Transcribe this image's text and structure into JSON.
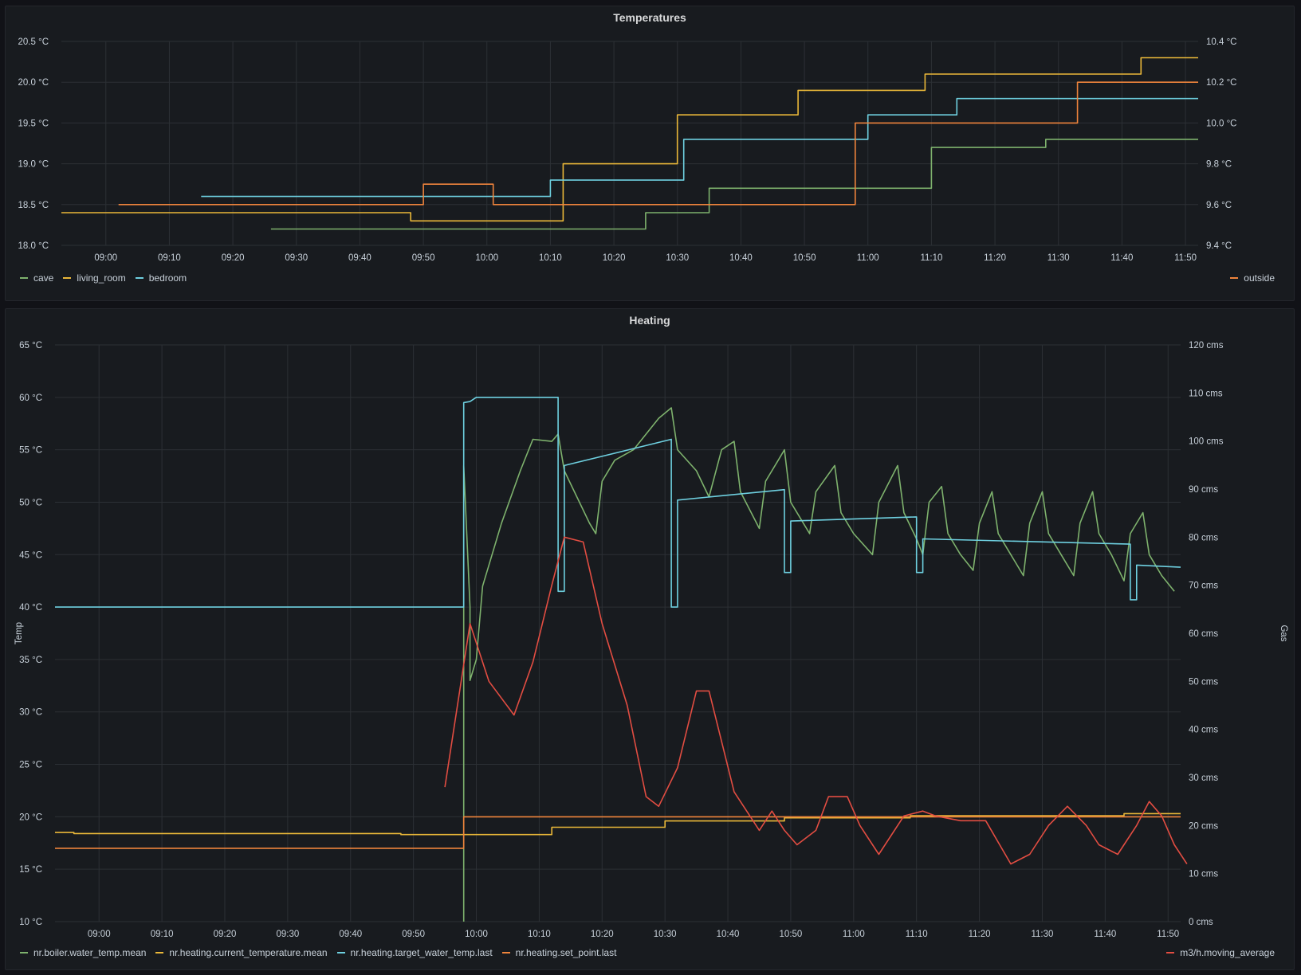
{
  "colors": {
    "green": "#73bf69",
    "yellow": "#fade2a",
    "cyan": "#8ab8ff",
    "orange": "#ff9830",
    "red": "#f2495c",
    "cyan2": "#73d3e6",
    "orange2": "#f09a3e",
    "red2": "#e0503c",
    "yellow2": "#e8b93a"
  },
  "chart_data": [
    {
      "type": "line",
      "title": "Temperatures",
      "x_ticks": [
        "09:00",
        "09:10",
        "09:20",
        "09:30",
        "09:40",
        "09:50",
        "10:00",
        "10:10",
        "10:20",
        "10:30",
        "10:40",
        "10:50",
        "11:00",
        "11:10",
        "11:20",
        "11:30",
        "11:40",
        "11:50"
      ],
      "x_range": [
        "08:53",
        "11:52"
      ],
      "y_left": {
        "ylim": [
          18.0,
          20.5
        ],
        "ticks": [
          "18.0 °C",
          "18.5 °C",
          "19.0 °C",
          "19.5 °C",
          "20.0 °C",
          "20.5 °C"
        ]
      },
      "y_right": {
        "ylim": [
          9.4,
          10.4
        ],
        "ticks": [
          "9.4 °C",
          "9.6 °C",
          "9.8 °C",
          "10.0 °C",
          "10.2 °C",
          "10.4 °C"
        ]
      },
      "grid": true,
      "series": [
        {
          "name": "cave",
          "color": "#7eb26d",
          "axis": "left",
          "step": true,
          "points": [
            [
              "09:26",
              18.2
            ],
            [
              "10:25",
              18.2
            ],
            [
              "10:25",
              18.4
            ],
            [
              "10:35",
              18.4
            ],
            [
              "10:35",
              18.7
            ],
            [
              "11:10",
              18.7
            ],
            [
              "11:10",
              19.2
            ],
            [
              "11:28",
              19.2
            ],
            [
              "11:28",
              19.3
            ],
            [
              "11:52",
              19.3
            ]
          ]
        },
        {
          "name": "living_room",
          "color": "#eab839",
          "axis": "left",
          "step": true,
          "points": [
            [
              "08:53",
              18.4
            ],
            [
              "09:48",
              18.4
            ],
            [
              "09:48",
              18.3
            ],
            [
              "10:12",
              18.3
            ],
            [
              "10:12",
              19.0
            ],
            [
              "10:30",
              19.0
            ],
            [
              "10:30",
              19.6
            ],
            [
              "10:49",
              19.6
            ],
            [
              "10:49",
              19.9
            ],
            [
              "11:09",
              19.9
            ],
            [
              "11:09",
              20.1
            ],
            [
              "11:43",
              20.1
            ],
            [
              "11:43",
              20.3
            ],
            [
              "11:52",
              20.3
            ]
          ]
        },
        {
          "name": "bedroom",
          "color": "#6ed0e0",
          "axis": "left",
          "step": true,
          "points": [
            [
              "09:15",
              18.6
            ],
            [
              "09:50",
              18.6
            ],
            [
              "09:50",
              18.6
            ],
            [
              "10:10",
              18.6
            ],
            [
              "10:10",
              18.8
            ],
            [
              "10:31",
              18.8
            ],
            [
              "10:31",
              19.3
            ],
            [
              "11:00",
              19.3
            ],
            [
              "11:00",
              19.6
            ],
            [
              "11:14",
              19.6
            ],
            [
              "11:14",
              19.8
            ],
            [
              "11:52",
              19.8
            ]
          ]
        },
        {
          "name": "outside",
          "color": "#ef843c",
          "axis": "right",
          "step": true,
          "points": [
            [
              "09:02",
              9.6
            ],
            [
              "09:50",
              9.6
            ],
            [
              "09:50",
              9.7
            ],
            [
              "10:01",
              9.7
            ],
            [
              "10:01",
              9.6
            ],
            [
              "10:58",
              9.6
            ],
            [
              "10:58",
              10.0
            ],
            [
              "11:33",
              10.0
            ],
            [
              "11:33",
              10.2
            ],
            [
              "11:52",
              10.2
            ]
          ]
        }
      ],
      "legend_left": [
        "cave",
        "living_room",
        "bedroom"
      ],
      "legend_right": [
        "outside"
      ]
    },
    {
      "type": "line",
      "title": "Heating",
      "x_ticks": [
        "09:00",
        "09:10",
        "09:20",
        "09:30",
        "09:40",
        "09:50",
        "10:00",
        "10:10",
        "10:20",
        "10:30",
        "10:40",
        "10:50",
        "11:00",
        "11:10",
        "11:20",
        "11:30",
        "11:40",
        "11:50"
      ],
      "x_range": [
        "08:53",
        "11:52"
      ],
      "ylabel": "Temp",
      "ylabel_right": "Gas",
      "y_left": {
        "ylim": [
          10,
          65
        ],
        "ticks": [
          "10 °C",
          "15 °C",
          "20 °C",
          "25 °C",
          "30 °C",
          "35 °C",
          "40 °C",
          "45 °C",
          "50 °C",
          "55 °C",
          "60 °C",
          "65 °C"
        ]
      },
      "y_right": {
        "ylim": [
          0,
          120
        ],
        "ticks": [
          "0 cms",
          "10 cms",
          "20 cms",
          "30 cms",
          "40 cms",
          "50 cms",
          "60 cms",
          "70 cms",
          "80 cms",
          "90 cms",
          "100 cms",
          "110 cms",
          "120 cms"
        ]
      },
      "grid": true,
      "series": [
        {
          "name": "nr.boiler.water_temp.mean",
          "color": "#7eb26d",
          "axis": "left",
          "points": [
            [
              "09:58",
              10
            ],
            [
              "09:58",
              53.5
            ],
            [
              "09:59",
              40
            ],
            [
              "09:59",
              33
            ],
            [
              "10:00",
              35
            ],
            [
              "10:01",
              42
            ],
            [
              "10:04",
              48
            ],
            [
              "10:07",
              53
            ],
            [
              "10:09",
              56
            ],
            [
              "10:12",
              55.8
            ],
            [
              "10:13",
              56.5
            ],
            [
              "10:14",
              53
            ],
            [
              "10:18",
              48
            ],
            [
              "10:19",
              47
            ],
            [
              "10:20",
              52
            ],
            [
              "10:22",
              54
            ],
            [
              "10:25",
              55
            ],
            [
              "10:29",
              58
            ],
            [
              "10:31",
              59
            ],
            [
              "10:32",
              55
            ],
            [
              "10:35",
              53
            ],
            [
              "10:37",
              50.5
            ],
            [
              "10:39",
              55
            ],
            [
              "10:41",
              55.8
            ],
            [
              "10:42",
              51
            ],
            [
              "10:45",
              47.5
            ],
            [
              "10:46",
              52
            ],
            [
              "10:48",
              54
            ],
            [
              "10:49",
              55
            ],
            [
              "10:50",
              50
            ],
            [
              "10:53",
              47
            ],
            [
              "10:54",
              51
            ],
            [
              "10:57",
              53.5
            ],
            [
              "10:58",
              49
            ],
            [
              "11:00",
              47
            ],
            [
              "11:03",
              45
            ],
            [
              "11:04",
              50
            ],
            [
              "11:07",
              53.5
            ],
            [
              "11:08",
              49
            ],
            [
              "11:10",
              46.5
            ],
            [
              "11:11",
              45
            ],
            [
              "11:12",
              50
            ],
            [
              "11:14",
              51.5
            ],
            [
              "11:15",
              47
            ],
            [
              "11:17",
              45
            ],
            [
              "11:19",
              43.5
            ],
            [
              "11:20",
              48
            ],
            [
              "11:22",
              51
            ],
            [
              "11:23",
              47
            ],
            [
              "11:25",
              45
            ],
            [
              "11:27",
              43
            ],
            [
              "11:28",
              48
            ],
            [
              "11:30",
              51
            ],
            [
              "11:31",
              47
            ],
            [
              "11:33",
              45
            ],
            [
              "11:35",
              43
            ],
            [
              "11:36",
              48
            ],
            [
              "11:38",
              51
            ],
            [
              "11:39",
              47
            ],
            [
              "11:41",
              45
            ],
            [
              "11:43",
              42.5
            ],
            [
              "11:44",
              47
            ],
            [
              "11:46",
              49
            ],
            [
              "11:47",
              45
            ],
            [
              "11:49",
              43
            ],
            [
              "11:51",
              41.5
            ]
          ]
        },
        {
          "name": "nr.heating.current_temperature.mean",
          "color": "#eab839",
          "axis": "left",
          "step": true,
          "points": [
            [
              "08:53",
              18.5
            ],
            [
              "08:56",
              18.5
            ],
            [
              "08:56",
              18.4
            ],
            [
              "09:48",
              18.4
            ],
            [
              "09:48",
              18.3
            ],
            [
              "10:12",
              18.3
            ],
            [
              "10:12",
              19.0
            ],
            [
              "10:30",
              19.0
            ],
            [
              "10:30",
              19.6
            ],
            [
              "10:49",
              19.6
            ],
            [
              "10:49",
              19.9
            ],
            [
              "11:09",
              19.9
            ],
            [
              "11:09",
              20.1
            ],
            [
              "11:43",
              20.1
            ],
            [
              "11:43",
              20.3
            ],
            [
              "11:52",
              20.3
            ]
          ]
        },
        {
          "name": "nr.heating.target_water_temp.last",
          "color": "#6ed0e0",
          "axis": "left",
          "points": [
            [
              "08:53",
              40
            ],
            [
              "09:58",
              40
            ],
            [
              "09:58",
              59.5
            ],
            [
              "09:59",
              59.6
            ],
            [
              "10:00",
              60
            ],
            [
              "10:13",
              60
            ],
            [
              "10:13",
              41.5
            ],
            [
              "10:14",
              41.5
            ],
            [
              "10:14",
              53.5
            ],
            [
              "10:31",
              56
            ],
            [
              "10:31",
              40
            ],
            [
              "10:32",
              40
            ],
            [
              "10:32",
              50.2
            ],
            [
              "10:49",
              51.2
            ],
            [
              "10:49",
              43.3
            ],
            [
              "10:50",
              43.3
            ],
            [
              "10:50",
              48.2
            ],
            [
              "11:10",
              48.6
            ],
            [
              "11:10",
              43.3
            ],
            [
              "11:11",
              43.3
            ],
            [
              "11:11",
              46.5
            ],
            [
              "11:44",
              46
            ],
            [
              "11:44",
              40.7
            ],
            [
              "11:45",
              40.7
            ],
            [
              "11:45",
              44
            ],
            [
              "11:52",
              43.8
            ]
          ]
        },
        {
          "name": "nr.heating.set_point.last",
          "color": "#ef843c",
          "axis": "left",
          "step": true,
          "points": [
            [
              "08:53",
              17
            ],
            [
              "09:58",
              17
            ],
            [
              "09:58",
              20
            ],
            [
              "11:52",
              20
            ]
          ]
        },
        {
          "name": "m3/h.moving_average",
          "color": "#e24d42",
          "axis": "right",
          "points": [
            [
              "09:55",
              28
            ],
            [
              "09:59",
              62
            ],
            [
              "10:02",
              50
            ],
            [
              "10:06",
              43
            ],
            [
              "10:09",
              54
            ],
            [
              "10:12",
              70
            ],
            [
              "10:14",
              80
            ],
            [
              "10:17",
              79
            ],
            [
              "10:20",
              62
            ],
            [
              "10:24",
              45
            ],
            [
              "10:27",
              26
            ],
            [
              "10:29",
              24
            ],
            [
              "10:32",
              32
            ],
            [
              "10:35",
              48
            ],
            [
              "10:37",
              48
            ],
            [
              "10:41",
              27
            ],
            [
              "10:45",
              19
            ],
            [
              "10:47",
              23
            ],
            [
              "10:49",
              19
            ],
            [
              "10:51",
              16
            ],
            [
              "10:54",
              19
            ],
            [
              "10:56",
              26
            ],
            [
              "10:59",
              26
            ],
            [
              "11:01",
              20
            ],
            [
              "11:04",
              14
            ],
            [
              "11:08",
              22
            ],
            [
              "11:11",
              23
            ],
            [
              "11:13",
              22
            ],
            [
              "11:17",
              21
            ],
            [
              "11:21",
              21
            ],
            [
              "11:25",
              12
            ],
            [
              "11:28",
              14
            ],
            [
              "11:31",
              20
            ],
            [
              "11:34",
              24
            ],
            [
              "11:37",
              20
            ],
            [
              "11:39",
              16
            ],
            [
              "11:42",
              14
            ],
            [
              "11:45",
              20
            ],
            [
              "11:47",
              25
            ],
            [
              "11:49",
              22
            ],
            [
              "11:51",
              16
            ],
            [
              "11:53",
              12
            ]
          ]
        }
      ],
      "legend_left": [
        "nr.boiler.water_temp.mean",
        "nr.heating.current_temperature.mean",
        "nr.heating.target_water_temp.last",
        "nr.heating.set_point.last"
      ],
      "legend_right": [
        "m3/h.moving_average"
      ]
    }
  ]
}
